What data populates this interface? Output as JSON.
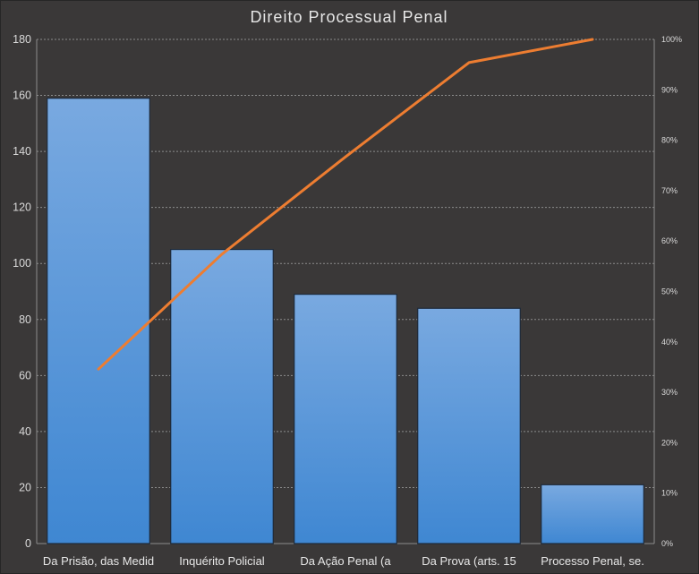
{
  "chart_data": {
    "type": "bar",
    "title": "Direito Processual Penal",
    "categories": [
      "Da Prisão, das Medid",
      "Inquérito  Policial",
      "Da Ação Penal (a",
      "Da Prova  (arts. 15",
      "Processo Penal, se."
    ],
    "series": [
      {
        "type": "bar",
        "axis": "left",
        "values": [
          159,
          105,
          89,
          84,
          21
        ]
      },
      {
        "type": "line",
        "axis": "right",
        "values": [
          34.6,
          57.4,
          76.7,
          95.4,
          100
        ]
      }
    ],
    "ylim": [
      0,
      180
    ],
    "yticks": [
      "0",
      "20",
      "40",
      "60",
      "80",
      "100",
      "120",
      "140",
      "160",
      "180"
    ],
    "y2lim": [
      0,
      100
    ],
    "y2ticks": [
      "0%",
      "10%",
      "20%",
      "30%",
      "40%",
      "50%",
      "60%",
      "70%",
      "80%",
      "90%",
      "100%"
    ],
    "grid": true,
    "legend": "none",
    "colors": {
      "background": "#3a3838",
      "bar_top": "#79a9e0",
      "bar_bottom": "#3f87d2",
      "line": "#ed7d31"
    }
  }
}
